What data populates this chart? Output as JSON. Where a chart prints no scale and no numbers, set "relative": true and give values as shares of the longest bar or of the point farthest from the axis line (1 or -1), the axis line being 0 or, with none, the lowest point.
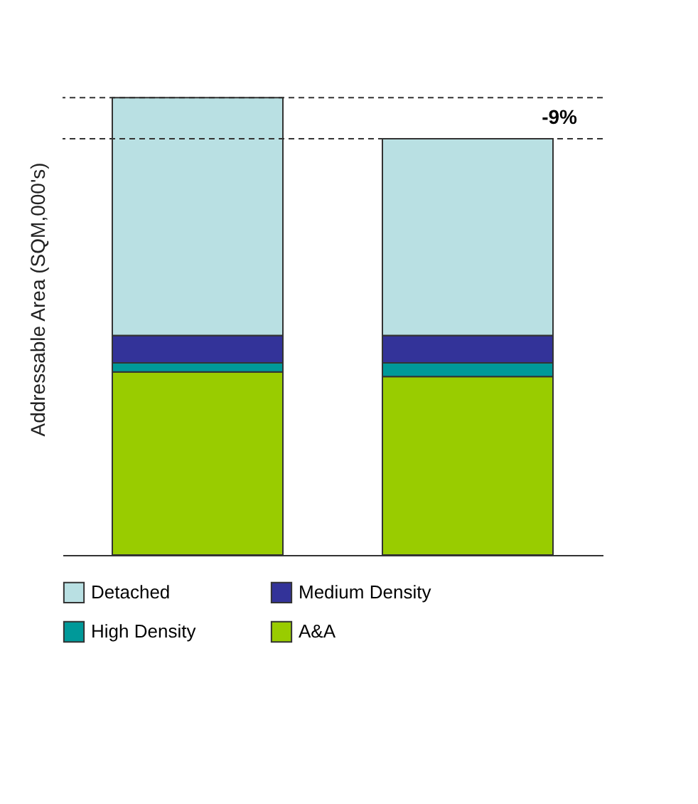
{
  "chart_data": {
    "type": "bar",
    "stacked": true,
    "relative": true,
    "ylabel": "Addressable Area (SQM,000's)",
    "categories": [
      null,
      null
    ],
    "series": [
      {
        "name": "A&A",
        "color": "#99cc00",
        "values": [
          0.4,
          0.39
        ]
      },
      {
        "name": "High Density",
        "color": "#009999",
        "values": [
          0.02,
          0.03
        ]
      },
      {
        "name": "Medium Density",
        "color": "#333399",
        "values": [
          0.06,
          0.06
        ]
      },
      {
        "name": "Detached",
        "color": "#b9e0e3",
        "values": [
          0.52,
          0.43
        ]
      }
    ],
    "ref_lines": [
      {
        "axis": "y",
        "value": 1,
        "line_style": "dashed"
      },
      {
        "axis": "y",
        "value": 0.91,
        "line_style": "dashed"
      }
    ],
    "annotations": [
      "-9%"
    ],
    "legend": "bottom"
  }
}
